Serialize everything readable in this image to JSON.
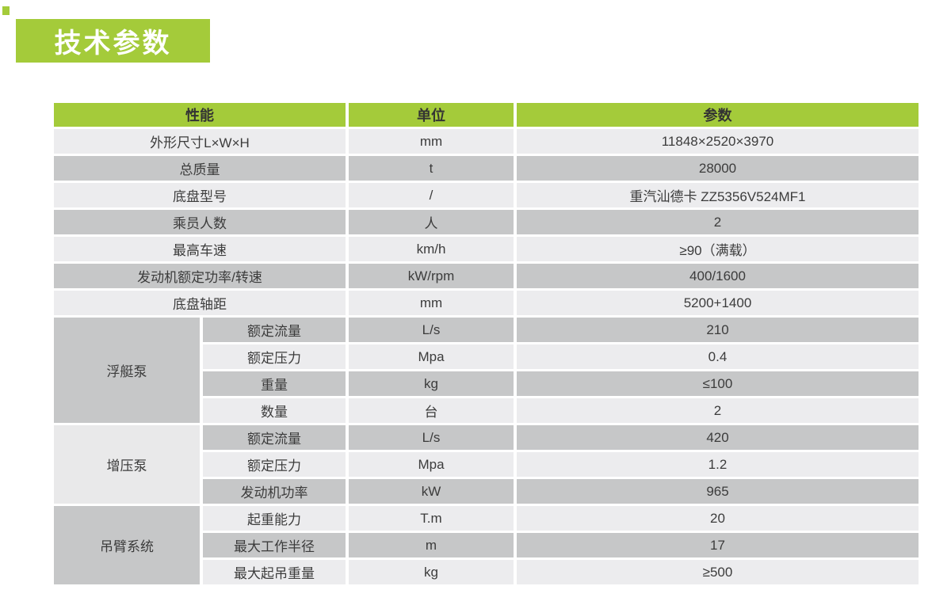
{
  "section_title": "技术参数",
  "colors": {
    "accent_green": "#a4cb3a",
    "row_light": "#ececee",
    "row_dark": "#c6c7c8",
    "group_light": "#e9e9ea",
    "group_dark": "#c6c7c8",
    "header_text": "#333333",
    "body_text": "#3c3c3c",
    "badge_text": "#ffffff"
  },
  "table": {
    "headers": [
      "性能",
      "单位",
      "参数"
    ],
    "rows": [
      {
        "name": "外形尺寸L×W×H",
        "unit": "mm",
        "value": "11848×2520×3970"
      },
      {
        "name": "总质量",
        "unit": "t",
        "value": "28000"
      },
      {
        "name": "底盘型号",
        "unit": "/",
        "value": "重汽汕德卡 ZZ5356V524MF1"
      },
      {
        "name": "乘员人数",
        "unit": "人",
        "value": "2"
      },
      {
        "name": "最高车速",
        "unit": "km/h",
        "value": "≥90（满载）"
      },
      {
        "name": "发动机额定功率/转速",
        "unit": "kW/rpm",
        "value": "400/1600"
      },
      {
        "name": "底盘轴距",
        "unit": "mm",
        "value": "5200+1400"
      },
      {
        "group": "浮艇泵",
        "group_span": 4,
        "group_shade": "dark",
        "name": "额定流量",
        "unit": "L/s",
        "value": "210"
      },
      {
        "name": "额定压力",
        "unit": "Mpa",
        "value": "0.4"
      },
      {
        "name": "重量",
        "unit": "kg",
        "value": "≤100"
      },
      {
        "name": "数量",
        "unit": "台",
        "value": "2"
      },
      {
        "group": "增压泵",
        "group_span": 3,
        "group_shade": "light",
        "name": "额定流量",
        "unit": "L/s",
        "value": "420"
      },
      {
        "name": "额定压力",
        "unit": "Mpa",
        "value": "1.2"
      },
      {
        "name": "发动机功率",
        "unit": "kW",
        "value": "965"
      },
      {
        "group": "吊臂系统",
        "group_span": 3,
        "group_shade": "dark",
        "name": "起重能力",
        "unit": "T.m",
        "value": "20"
      },
      {
        "name": "最大工作半径",
        "unit": "m",
        "value": "17"
      },
      {
        "name": "最大起吊重量",
        "unit": "kg",
        "value": "≥500"
      }
    ]
  }
}
